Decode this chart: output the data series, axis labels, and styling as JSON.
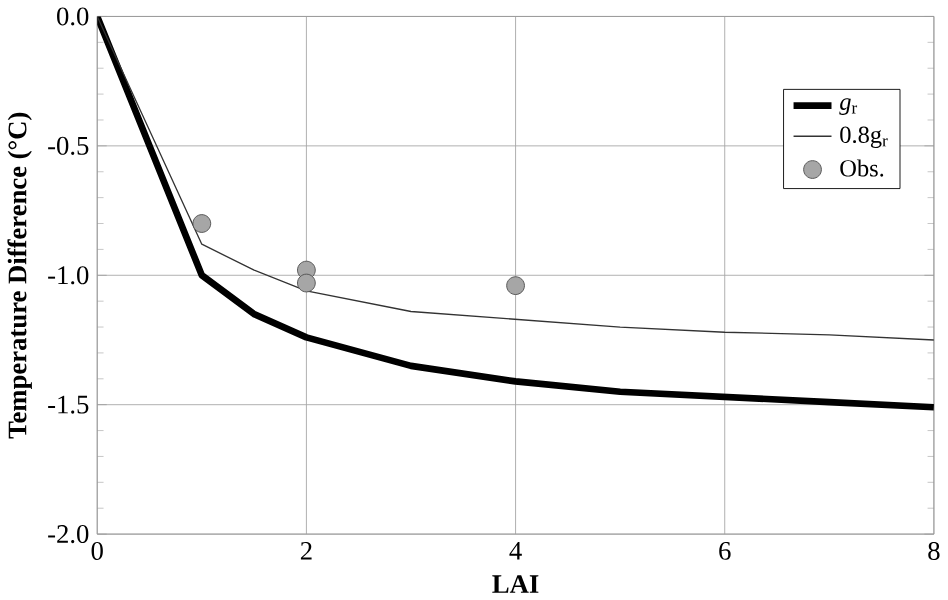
{
  "chart_data": {
    "type": "line",
    "xlabel": "LAI",
    "ylabel": "Temperature Difference (°C)",
    "xlim": [
      0,
      8
    ],
    "ylim": [
      -2,
      0
    ],
    "xticks": [
      0,
      2,
      4,
      6,
      8
    ],
    "yticks": [
      {
        "value": 0,
        "label": "0.0"
      },
      {
        "value": -0.5,
        "label": "-0.5"
      },
      {
        "value": -1,
        "label": "-1.0"
      },
      {
        "value": -1.5,
        "label": "-1.5"
      },
      {
        "value": -2,
        "label": "-2.0"
      }
    ],
    "grid": true,
    "legend": "top right",
    "series": [
      {
        "name": "*g*$_{r}$",
        "color": "#000000",
        "x": [
          0,
          1,
          1.5,
          2,
          3,
          4,
          5,
          6,
          7,
          8
        ],
        "values": [
          0,
          -1.0,
          -1.15,
          -1.24,
          -1.35,
          -1.41,
          -1.45,
          -1.47,
          -1.49,
          -1.51
        ]
      },
      {
        "name": "0.8g$_{r}$",
        "color": "#333333",
        "x": [
          0,
          1,
          1.5,
          2,
          3,
          4,
          5,
          6,
          7,
          8
        ],
        "values": [
          0,
          -0.88,
          -0.98,
          -1.06,
          -1.14,
          -1.17,
          -1.2,
          -1.22,
          -1.23,
          -1.25
        ]
      },
      {
        "name": "Obs.",
        "type": "scatter",
        "marker": "circle",
        "color": "#a6a6a6",
        "x": [
          1,
          2,
          2,
          4
        ],
        "values": [
          -0.8,
          -0.98,
          -1.03,
          -1.04
        ]
      }
    ]
  }
}
